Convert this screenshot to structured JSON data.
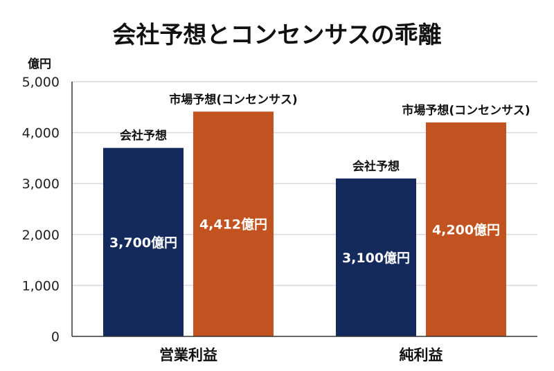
{
  "chart_data": {
    "type": "bar",
    "title": "会社予想とコンセンサスの乖離",
    "ylabel": "億円",
    "ylim": [
      0,
      5000
    ],
    "yticks": [
      0,
      1000,
      2000,
      3000,
      4000,
      5000
    ],
    "ytick_labels": [
      "0",
      "1,000",
      "2,000",
      "3,000",
      "4,000",
      "5,000"
    ],
    "categories": [
      "営業利益",
      "純利益"
    ],
    "grid": true,
    "series": [
      {
        "name": "会社予想",
        "color": "#142a5c",
        "values": [
          3700,
          3100
        ],
        "data_labels": [
          "3,700億円",
          "3,100億円"
        ]
      },
      {
        "name": "市場予想(コンセンサス)",
        "color": "#c2521f",
        "values": [
          4412,
          4200
        ],
        "data_labels": [
          "4,412億円",
          "4,200億円"
        ]
      }
    ]
  }
}
